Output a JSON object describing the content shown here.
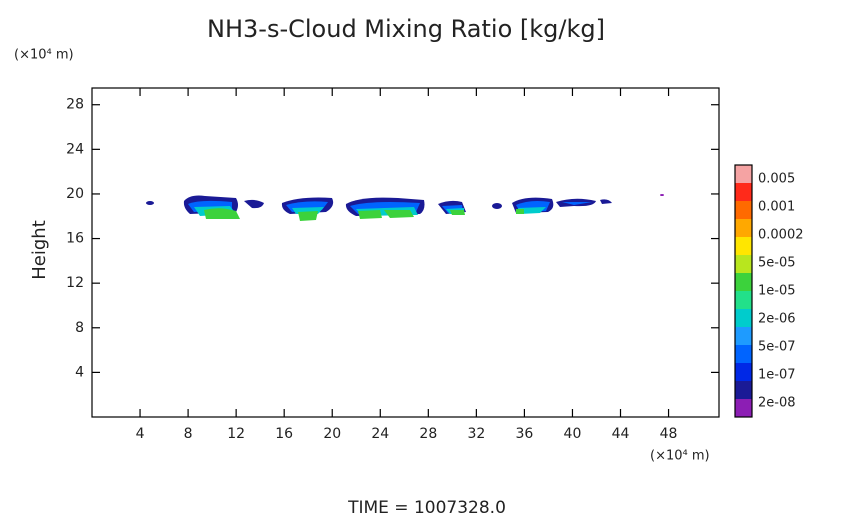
{
  "chart_data": {
    "type": "contour",
    "title": "NH3-s-Cloud Mixing Ratio [kg/kg]",
    "y_unit": "(×10⁴ m)",
    "x_unit": "(×10⁴ m)",
    "y_label": "Height",
    "footer": "TIME = 1007328.0",
    "xlim": [
      0,
      52.2
    ],
    "ylim": [
      0,
      29.5
    ],
    "xticks": [
      4,
      8,
      12,
      16,
      20,
      24,
      28,
      32,
      36,
      40,
      44,
      48
    ],
    "yticks": [
      4,
      8,
      12,
      16,
      20,
      24,
      28
    ],
    "colorbar": {
      "colors": [
        "#f5a3a3",
        "#ff2a1a",
        "#ff6a00",
        "#ffa800",
        "#ffe600",
        "#b8e61e",
        "#3cd23c",
        "#22e08a",
        "#00cccc",
        "#1e9bff",
        "#0064ff",
        "#0028e6",
        "#1a1a96",
        "#8c1eb4"
      ],
      "labels": [
        {
          "value": 0.005,
          "label": "0.005"
        },
        {
          "value": 0.001,
          "label": "0.001"
        },
        {
          "value": 0.0002,
          "label": "0.0002"
        },
        {
          "value": 5e-05,
          "label": "5e-05"
        },
        {
          "value": 1e-05,
          "label": "1e-05"
        },
        {
          "value": 2e-06,
          "label": "2e-06"
        },
        {
          "value": 5e-07,
          "label": "5e-07"
        },
        {
          "value": 1e-07,
          "label": "1e-07"
        },
        {
          "value": 2e-08,
          "label": "2e-08"
        }
      ]
    }
  }
}
